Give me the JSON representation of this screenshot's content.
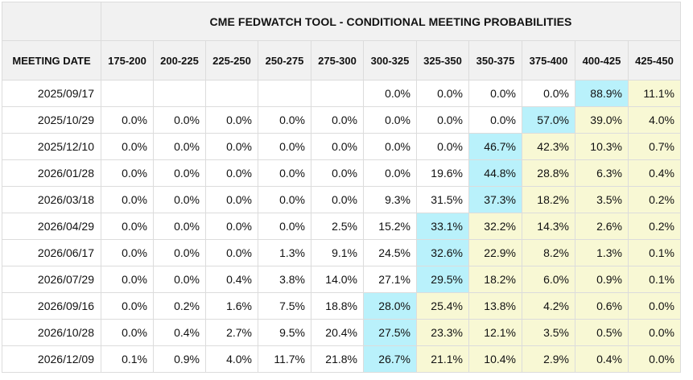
{
  "title": "CME FEDWATCH TOOL - CONDITIONAL MEETING PROBABILITIES",
  "row_header_label": "MEETING DATE",
  "colors": {
    "highlight_max": "#b9f1fb",
    "highlight_above": "#f8f8d4",
    "header_bg": "#f1f1f1"
  },
  "chart_data": {
    "type": "table",
    "title": "CME FEDWATCH TOOL - CONDITIONAL MEETING PROBABILITIES",
    "columns": [
      "175-200",
      "200-225",
      "225-250",
      "250-275",
      "275-300",
      "300-325",
      "325-350",
      "350-375",
      "375-400",
      "400-425",
      "425-450"
    ],
    "rows": [
      {
        "date": "2025/09/17",
        "values": [
          "",
          "",
          "",
          "",
          "",
          "0.0%",
          "0.0%",
          "0.0%",
          "0.0%",
          "88.9%",
          "11.1%"
        ],
        "max_index": 9,
        "cur_index": 10
      },
      {
        "date": "2025/10/29",
        "values": [
          "0.0%",
          "0.0%",
          "0.0%",
          "0.0%",
          "0.0%",
          "0.0%",
          "0.0%",
          "0.0%",
          "57.0%",
          "39.0%",
          "4.0%"
        ],
        "max_index": 8,
        "cur_index": 10
      },
      {
        "date": "2025/12/10",
        "values": [
          "0.0%",
          "0.0%",
          "0.0%",
          "0.0%",
          "0.0%",
          "0.0%",
          "0.0%",
          "46.7%",
          "42.3%",
          "10.3%",
          "0.7%"
        ],
        "max_index": 7,
        "cur_index": 10
      },
      {
        "date": "2026/01/28",
        "values": [
          "0.0%",
          "0.0%",
          "0.0%",
          "0.0%",
          "0.0%",
          "0.0%",
          "19.6%",
          "44.8%",
          "28.8%",
          "6.3%",
          "0.4%"
        ],
        "max_index": 7,
        "cur_index": 10
      },
      {
        "date": "2026/03/18",
        "values": [
          "0.0%",
          "0.0%",
          "0.0%",
          "0.0%",
          "0.0%",
          "9.3%",
          "31.5%",
          "37.3%",
          "18.2%",
          "3.5%",
          "0.2%"
        ],
        "max_index": 7,
        "cur_index": 10
      },
      {
        "date": "2026/04/29",
        "values": [
          "0.0%",
          "0.0%",
          "0.0%",
          "0.0%",
          "2.5%",
          "15.2%",
          "33.1%",
          "32.2%",
          "14.3%",
          "2.6%",
          "0.2%"
        ],
        "max_index": 6,
        "cur_index": 10
      },
      {
        "date": "2026/06/17",
        "values": [
          "0.0%",
          "0.0%",
          "0.0%",
          "1.3%",
          "9.1%",
          "24.5%",
          "32.6%",
          "22.9%",
          "8.2%",
          "1.3%",
          "0.1%"
        ],
        "max_index": 6,
        "cur_index": 10
      },
      {
        "date": "2026/07/29",
        "values": [
          "0.0%",
          "0.0%",
          "0.4%",
          "3.8%",
          "14.0%",
          "27.1%",
          "29.5%",
          "18.2%",
          "6.0%",
          "0.9%",
          "0.1%"
        ],
        "max_index": 6,
        "cur_index": 10
      },
      {
        "date": "2026/09/16",
        "values": [
          "0.0%",
          "0.2%",
          "1.6%",
          "7.5%",
          "18.8%",
          "28.0%",
          "25.4%",
          "13.8%",
          "4.2%",
          "0.6%",
          "0.0%"
        ],
        "max_index": 5,
        "cur_index": 10
      },
      {
        "date": "2026/10/28",
        "values": [
          "0.0%",
          "0.4%",
          "2.7%",
          "9.5%",
          "20.4%",
          "27.5%",
          "23.3%",
          "12.1%",
          "3.5%",
          "0.5%",
          "0.0%"
        ],
        "max_index": 5,
        "cur_index": 10
      },
      {
        "date": "2026/12/09",
        "values": [
          "0.1%",
          "0.9%",
          "4.0%",
          "11.7%",
          "21.8%",
          "26.7%",
          "21.1%",
          "10.4%",
          "2.9%",
          "0.4%",
          "0.0%"
        ],
        "max_index": 5,
        "cur_index": 10
      }
    ]
  }
}
